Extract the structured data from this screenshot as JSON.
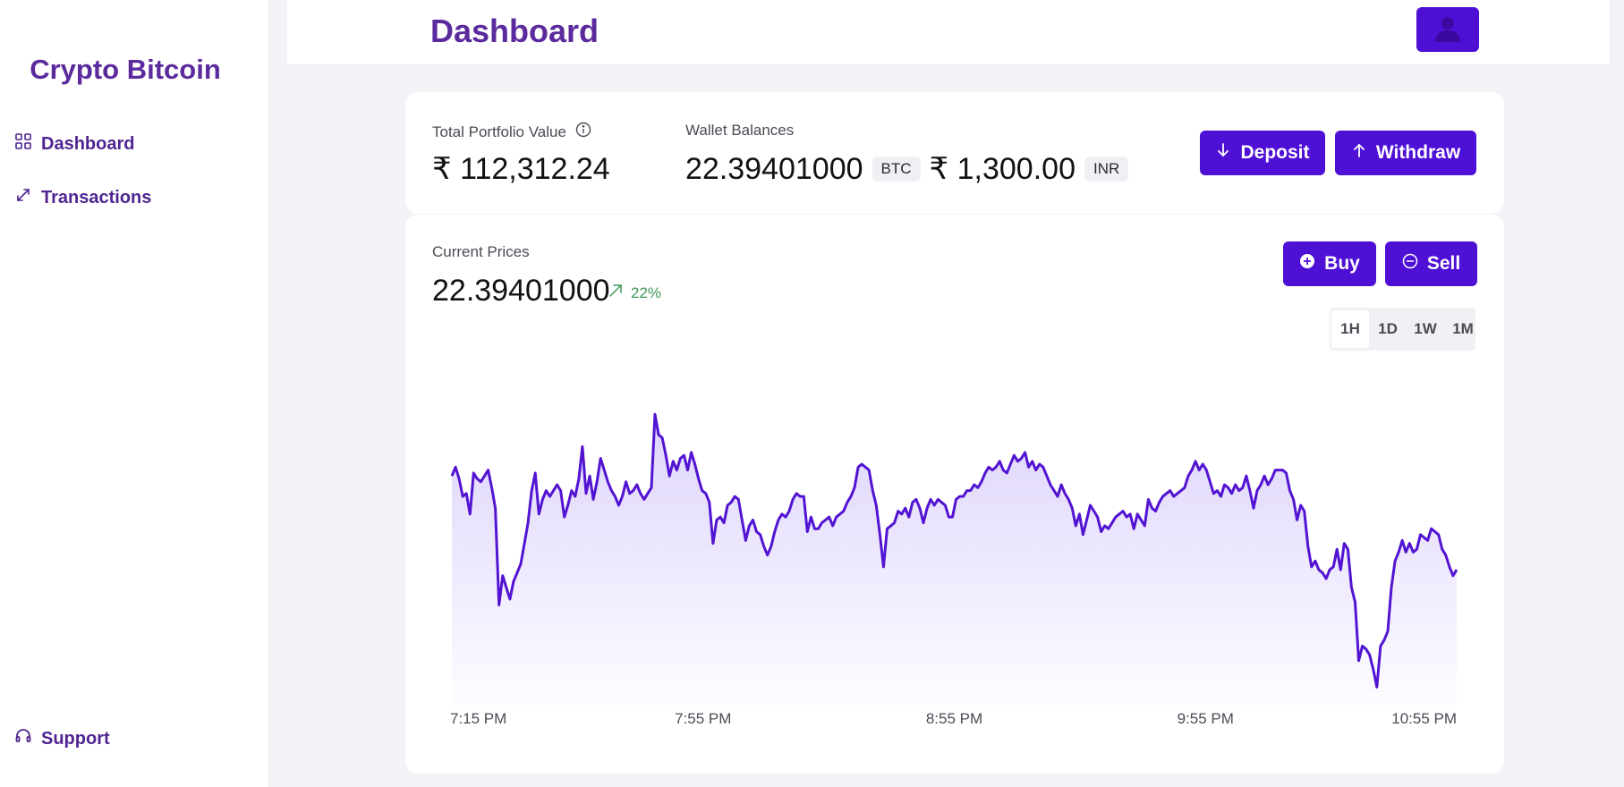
{
  "sidebar": {
    "brand": "Crypto Bitcoin",
    "items": [
      {
        "label": "Dashboard",
        "icon": "grid-icon"
      },
      {
        "label": "Transactions",
        "icon": "arrows-diagonal-icon"
      }
    ],
    "support": {
      "label": "Support",
      "icon": "headset-icon"
    }
  },
  "header": {
    "title": "Dashboard",
    "avatar_icon": "user-icon"
  },
  "portfolio": {
    "label": "Total Portfolio Value",
    "value": "₹ 112,312.24",
    "info_icon": "info-icon"
  },
  "wallet": {
    "label": "Wallet Balances",
    "btc_amount": "22.39401000",
    "btc_unit": "BTC",
    "inr_amount": "₹ 1,300.00",
    "inr_unit": "INR"
  },
  "actions": {
    "deposit": "Deposit",
    "withdraw": "Withdraw",
    "buy": "Buy",
    "sell": "Sell"
  },
  "prices": {
    "label": "Current Prices",
    "value": "22.39401000",
    "change": "22%"
  },
  "range_tabs": [
    "1H",
    "1D",
    "1W",
    "1M"
  ],
  "active_range": "1H",
  "colors": {
    "accent": "#4f10d6",
    "brand_text": "#5b2a9c",
    "positive": "#3f9a57",
    "line": "#5214d2"
  },
  "chart_data": {
    "type": "area",
    "x_ticks": [
      "7:15 PM",
      "7:55 PM",
      "8:55 PM",
      "9:55 PM",
      "10:55 PM"
    ],
    "y_axis_shown": false,
    "grid": false,
    "values": [
      0.78,
      0.81,
      0.77,
      0.71,
      0.72,
      0.65,
      0.79,
      0.77,
      0.76,
      0.78,
      0.8,
      0.74,
      0.67,
      0.34,
      0.44,
      0.4,
      0.36,
      0.42,
      0.45,
      0.48,
      0.55,
      0.62,
      0.73,
      0.79,
      0.65,
      0.7,
      0.73,
      0.71,
      0.73,
      0.75,
      0.73,
      0.64,
      0.68,
      0.73,
      0.71,
      0.77,
      0.88,
      0.72,
      0.78,
      0.7,
      0.76,
      0.84,
      0.8,
      0.76,
      0.73,
      0.71,
      0.68,
      0.71,
      0.76,
      0.72,
      0.73,
      0.75,
      0.72,
      0.7,
      0.72,
      0.74,
      0.99,
      0.92,
      0.91,
      0.85,
      0.78,
      0.83,
      0.8,
      0.84,
      0.85,
      0.8,
      0.86,
      0.82,
      0.77,
      0.73,
      0.72,
      0.69,
      0.55,
      0.63,
      0.64,
      0.62,
      0.68,
      0.69,
      0.71,
      0.7,
      0.63,
      0.56,
      0.61,
      0.63,
      0.59,
      0.58,
      0.54,
      0.51,
      0.54,
      0.59,
      0.63,
      0.65,
      0.64,
      0.66,
      0.7,
      0.72,
      0.71,
      0.71,
      0.59,
      0.64,
      0.6,
      0.6,
      0.62,
      0.63,
      0.64,
      0.61,
      0.64,
      0.65,
      0.66,
      0.69,
      0.71,
      0.74,
      0.81,
      0.82,
      0.81,
      0.8,
      0.73,
      0.68,
      0.58,
      0.47,
      0.6,
      0.61,
      0.62,
      0.66,
      0.65,
      0.67,
      0.64,
      0.69,
      0.7,
      0.67,
      0.62,
      0.67,
      0.7,
      0.68,
      0.7,
      0.69,
      0.68,
      0.64,
      0.64,
      0.7,
      0.71,
      0.71,
      0.73,
      0.73,
      0.75,
      0.74,
      0.76,
      0.79,
      0.81,
      0.8,
      0.81,
      0.83,
      0.8,
      0.79,
      0.82,
      0.85,
      0.83,
      0.84,
      0.86,
      0.81,
      0.83,
      0.8,
      0.82,
      0.81,
      0.78,
      0.75,
      0.73,
      0.71,
      0.75,
      0.72,
      0.7,
      0.67,
      0.61,
      0.65,
      0.58,
      0.63,
      0.68,
      0.66,
      0.64,
      0.59,
      0.61,
      0.6,
      0.62,
      0.64,
      0.65,
      0.66,
      0.64,
      0.65,
      0.6,
      0.65,
      0.63,
      0.61,
      0.7,
      0.67,
      0.66,
      0.69,
      0.71,
      0.72,
      0.73,
      0.71,
      0.72,
      0.73,
      0.74,
      0.78,
      0.8,
      0.83,
      0.8,
      0.82,
      0.8,
      0.76,
      0.72,
      0.73,
      0.71,
      0.75,
      0.74,
      0.72,
      0.75,
      0.73,
      0.74,
      0.78,
      0.73,
      0.67,
      0.73,
      0.75,
      0.78,
      0.75,
      0.77,
      0.8,
      0.8,
      0.8,
      0.79,
      0.73,
      0.7,
      0.63,
      0.68,
      0.66,
      0.54,
      0.47,
      0.49,
      0.46,
      0.45,
      0.43,
      0.46,
      0.47,
      0.53,
      0.46,
      0.55,
      0.53,
      0.4,
      0.35,
      0.15,
      0.2,
      0.19,
      0.17,
      0.12,
      0.06,
      0.2,
      0.22,
      0.25,
      0.4,
      0.49,
      0.52,
      0.56,
      0.52,
      0.55,
      0.52,
      0.53,
      0.58,
      0.57,
      0.56,
      0.6,
      0.59,
      0.58,
      0.53,
      0.51,
      0.47,
      0.44,
      0.46
    ]
  }
}
